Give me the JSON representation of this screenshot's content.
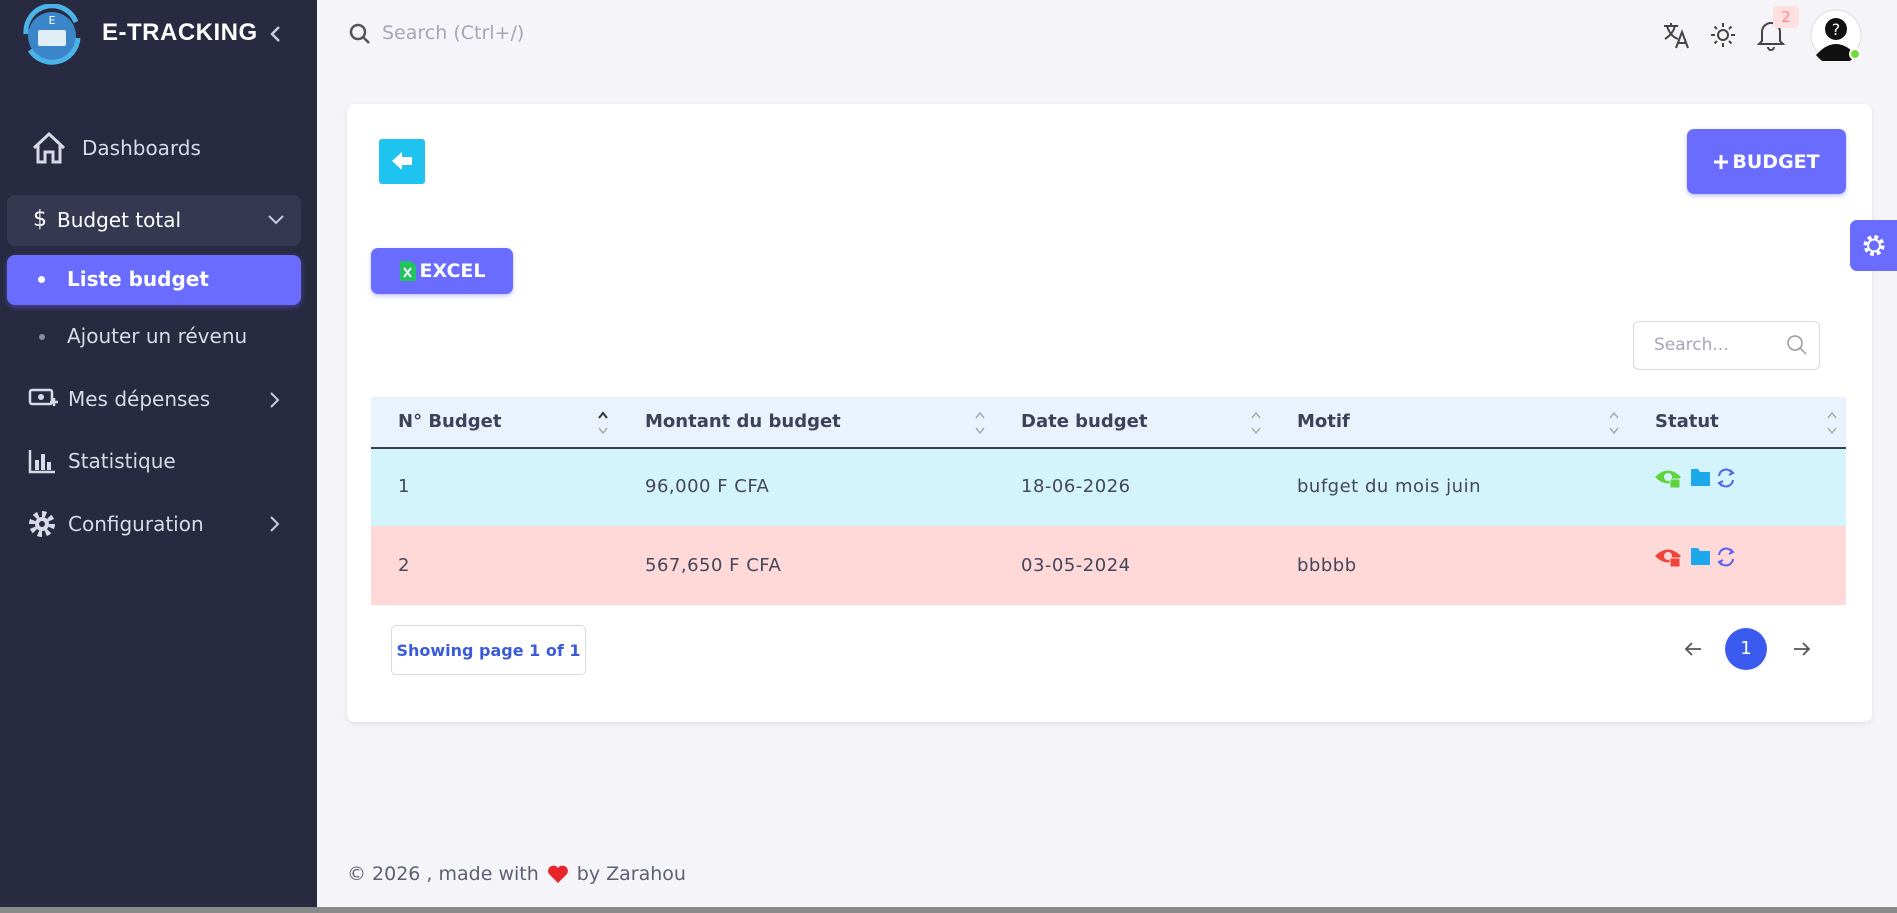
{
  "sidebar": {
    "brand": "E-TRACKING",
    "menu": [
      {
        "label": "Dashboards"
      },
      {
        "label": "Budget total",
        "children": [
          "Liste budget",
          "Ajouter un révenu"
        ]
      },
      {
        "label": "Mes dépenses"
      },
      {
        "label": "Statistique"
      },
      {
        "label": "Configuration"
      }
    ]
  },
  "topbar": {
    "search_placeholder": "Search (Ctrl+/)",
    "notifications": "2"
  },
  "toolbar": {
    "add_button": "BUDGET",
    "excel_button": "EXCEL",
    "search_placeholder": "Search..."
  },
  "table": {
    "columns": [
      "N° Budget",
      "Montant du budget",
      "Date budget",
      "Motif",
      "Statut"
    ],
    "rows": [
      [
        "1",
        "96,000 F CFA",
        "18-06-2026",
        "bufget du mois juin"
      ],
      [
        "2",
        "567,650 F CFA",
        "03-05-2024",
        "bbbbb"
      ]
    ]
  },
  "pagination": {
    "info": "Showing page 1 of 1",
    "current": "1"
  },
  "footer": {
    "before": "© 2026 , made with",
    "after": "by Zarahou"
  }
}
